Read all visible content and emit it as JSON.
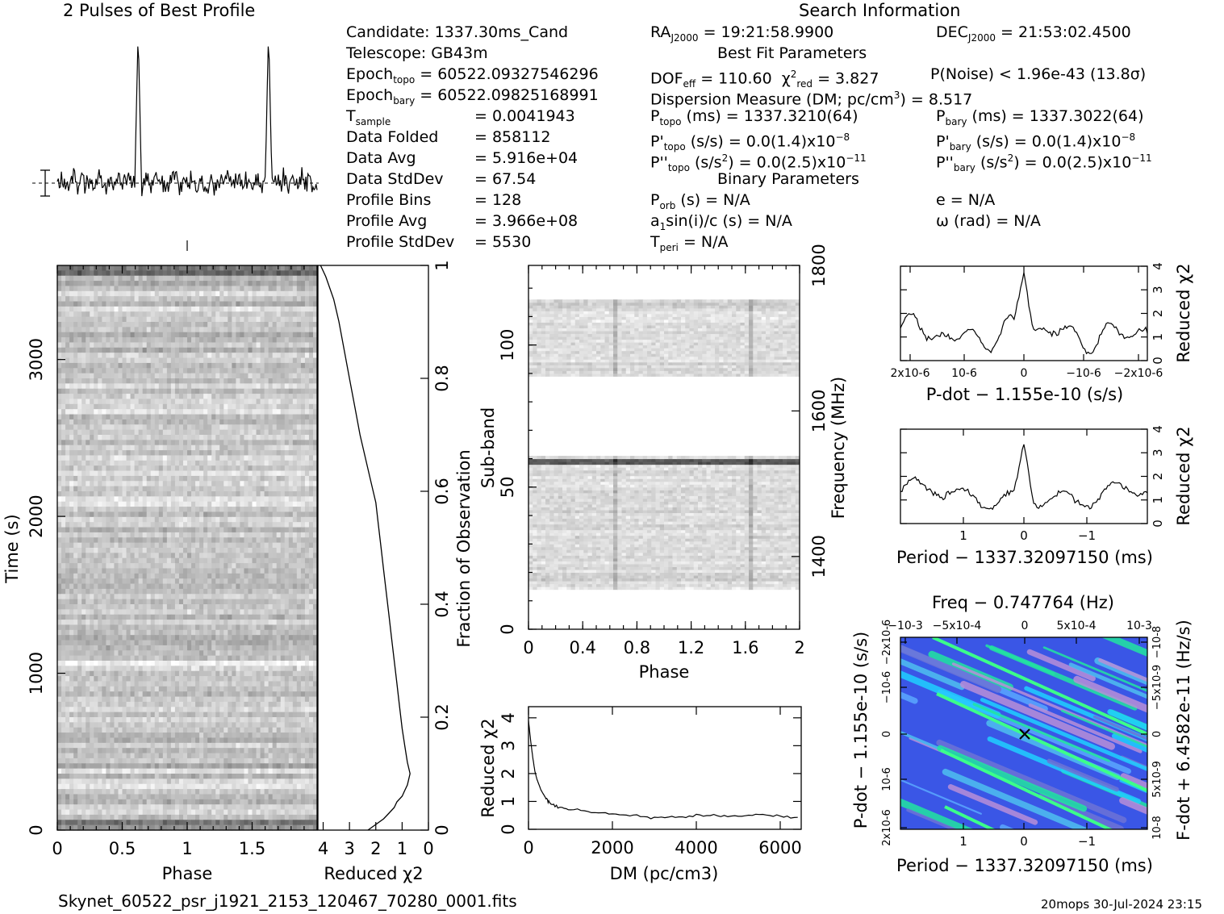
{
  "profile_title": "2 Pulses of Best Profile",
  "search_title": "Search Information",
  "candidate_info": {
    "candidate": "Candidate:  1337.30ms_Cand",
    "telescope": "Telescope:  GB43m",
    "epoch_topo": "= 60522.09327546296",
    "epoch_bary": "= 60522.09825168991",
    "t_sample": "=  0.0041943",
    "data_folded": "=  858112",
    "data_avg": "=  5.916e+04",
    "data_stddev": "=  67.54",
    "profile_bins": "=  128",
    "profile_avg": "=  3.966e+08",
    "profile_stddev": "=  5530"
  },
  "search_info": {
    "ra": "= 19:21:58.9900",
    "dec": "= 21:53:02.4500",
    "best_fit_header": "Best Fit Parameters",
    "dof_eff": "= 110.60",
    "chi2_red": "= 3.827",
    "p_noise": "P(Noise) < 1.96e-43  (13.8σ)",
    "dm_line": "Dispersion Measure (DM; pc/cm",
    "dm_value": ") = 8.517",
    "p_topo": "(ms) =  1337.3210(64)",
    "p_bary": "(ms) =  1337.3022(64)",
    "pd_topo": "(s/s) = 0.0(1.4)x10",
    "pd_bary": "(s/s) = 0.0(1.4)x10",
    "pdd_topo": "= 0.0(2.5)x10",
    "pdd_bary": "= 0.0(2.5)x10",
    "binary_header": "Binary Parameters",
    "p_orb": "(s) = N/A",
    "e": "e = N/A",
    "a1sini": "sin(i)/c (s) = N/A",
    "omega": "ω (rad) = N/A",
    "t_peri": "= N/A"
  },
  "footer": {
    "filename": "Skynet_60522_psr_j1921_2153_120467_70280_0001.fits",
    "stamp": "20mops 30-Jul-2024 23:15"
  },
  "chart_data": [
    {
      "type": "line",
      "title": "2 Pulses of Best Profile",
      "x_range": [
        0,
        2
      ],
      "peaks_at_phase": [
        0.62,
        1.62
      ]
    },
    {
      "type": "heatmap",
      "xlabel": "Phase",
      "ylabel": "Time (s)",
      "x_ticks": [
        "0",
        "0.5",
        "1",
        "1.5"
      ],
      "y_ticks": [
        "0",
        "1000",
        "2000",
        "3000"
      ],
      "xlim": [
        0,
        2
      ],
      "ylim": [
        0,
        3600
      ]
    },
    {
      "type": "line",
      "xlabel": "Reduced χ2",
      "ylabel": "Fraction of Observation",
      "x_ticks": [
        "4",
        "3",
        "2",
        "1",
        "0"
      ],
      "y_ticks": [
        "0",
        "0.2",
        "0.4",
        "0.6",
        "0.8",
        "1"
      ],
      "xlim": [
        4.2,
        0
      ],
      "ylim": [
        0,
        1
      ],
      "points": [
        [
          2.3,
          0
        ],
        [
          2.0,
          0.01
        ],
        [
          1.7,
          0.02
        ],
        [
          1.5,
          0.03
        ],
        [
          1.3,
          0.04
        ],
        [
          1.2,
          0.05
        ],
        [
          1.0,
          0.06
        ],
        [
          0.9,
          0.07
        ],
        [
          0.8,
          0.08
        ],
        [
          0.7,
          0.1
        ],
        [
          0.8,
          0.12
        ],
        [
          0.9,
          0.15
        ],
        [
          1.0,
          0.18
        ],
        [
          1.1,
          0.22
        ],
        [
          1.2,
          0.26
        ],
        [
          1.3,
          0.3
        ],
        [
          1.4,
          0.34
        ],
        [
          1.5,
          0.38
        ],
        [
          1.6,
          0.42
        ],
        [
          1.7,
          0.46
        ],
        [
          1.8,
          0.5
        ],
        [
          1.9,
          0.54
        ],
        [
          2.0,
          0.58
        ],
        [
          2.2,
          0.62
        ],
        [
          2.4,
          0.66
        ],
        [
          2.6,
          0.7
        ],
        [
          2.8,
          0.75
        ],
        [
          3.0,
          0.8
        ],
        [
          3.2,
          0.85
        ],
        [
          3.4,
          0.9
        ],
        [
          3.6,
          0.94
        ],
        [
          3.9,
          0.98
        ],
        [
          4.1,
          1.0
        ]
      ]
    },
    {
      "type": "heatmap",
      "xlabel": "Phase",
      "ylabel": "Sub-band",
      "y2label": "Frequency (MHz)",
      "x_ticks": [
        "0",
        "0.4",
        "0.8",
        "1.2",
        "1.6",
        "2"
      ],
      "y_ticks": [
        "0",
        "50",
        "100"
      ],
      "y2_ticks": [
        "1400",
        "1600",
        "1800"
      ],
      "xlim": [
        0,
        2
      ],
      "ylim": [
        0,
        128
      ],
      "filled_subbands": [
        [
          14,
          60
        ],
        [
          89,
          115
        ]
      ]
    },
    {
      "type": "line",
      "xlabel": "DM (pc/cm3)",
      "ylabel": "Reduced χ2",
      "x_ticks": [
        "0",
        "2000",
        "4000",
        "6000"
      ],
      "y_ticks": [
        "0",
        "1",
        "2",
        "3",
        "4"
      ],
      "xlim": [
        0,
        6500
      ],
      "ylim": [
        0,
        4.4
      ],
      "points": [
        [
          0,
          3.9
        ],
        [
          50,
          3.2
        ],
        [
          100,
          2.6
        ],
        [
          150,
          2.1
        ],
        [
          200,
          1.8
        ],
        [
          300,
          1.4
        ],
        [
          400,
          1.15
        ],
        [
          500,
          0.95
        ],
        [
          700,
          0.8
        ],
        [
          1000,
          0.7
        ],
        [
          1500,
          0.62
        ],
        [
          2000,
          0.55
        ],
        [
          2500,
          0.5
        ],
        [
          3000,
          0.42
        ],
        [
          3500,
          0.45
        ],
        [
          4000,
          0.48
        ],
        [
          4500,
          0.5
        ],
        [
          5000,
          0.45
        ],
        [
          5500,
          0.52
        ],
        [
          6000,
          0.45
        ],
        [
          6500,
          0.4
        ]
      ]
    },
    {
      "type": "line",
      "xlabel": "P-dot − 1.155e-10 (s/s)",
      "ylabel": "Reduced χ2",
      "x_ticks": [
        "2x10-6",
        "10-6",
        "0",
        "−10-6",
        "−2x10-6"
      ],
      "y_ticks": [
        "0",
        "1",
        "2",
        "3",
        "4"
      ],
      "ylim": [
        0,
        4
      ]
    },
    {
      "type": "line",
      "xlabel": "Period − 1337.32097150 (ms)",
      "ylabel": "Reduced χ2",
      "x_ticks": [
        "1",
        "0",
        "−1"
      ],
      "y_ticks": [
        "0",
        "1",
        "2",
        "3",
        "4"
      ],
      "ylim": [
        0,
        4
      ]
    },
    {
      "type": "heatmap",
      "title": "Freq − 0.747764 (Hz)",
      "xlabel": "Period − 1337.32097150 (ms)",
      "ylabel": "P-dot − 1.155e-10 (s/s)",
      "y2label": "F-dot + 6.4582e-11 (Hz/s)",
      "x_ticks": [
        "1",
        "0",
        "−1"
      ],
      "x2_ticks": [
        "−10-3",
        "−5x10-4",
        "0",
        "5x10-4",
        "10-3"
      ],
      "y_ticks": [
        "2x10-6",
        "10-6",
        "0",
        "−10-6",
        "−2x10-6"
      ],
      "y2_ticks": [
        "−10-8",
        "−5x10-9",
        "0",
        "5x10-9",
        "10-8"
      ]
    }
  ]
}
